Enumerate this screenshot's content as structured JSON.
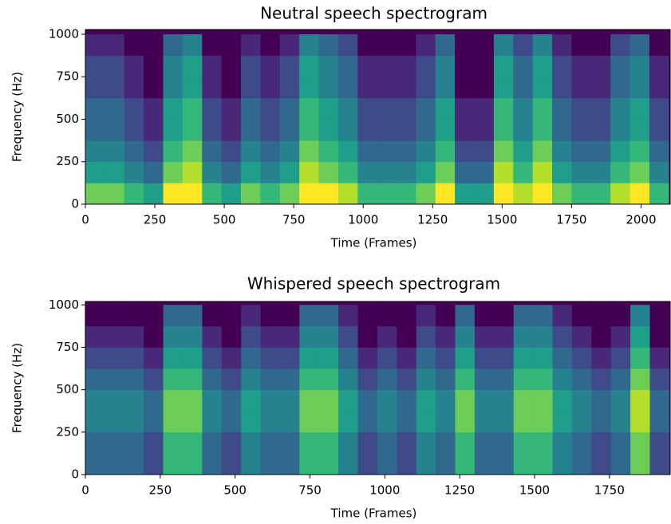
{
  "chart_data": [
    {
      "type": "heatmap",
      "title": "Neutral speech spectrogram",
      "xlabel": "Time (Frames)",
      "ylabel": "Frequency (Hz)",
      "xlim": [
        0,
        2105
      ],
      "ylim": [
        0,
        1028
      ],
      "xticks": [
        0,
        250,
        500,
        750,
        1000,
        1250,
        1500,
        1750,
        2000
      ],
      "yticks": [
        0,
        250,
        500,
        750,
        1000
      ],
      "colormap": "viridis",
      "zlim": [
        0,
        9
      ],
      "x_edges": [
        0,
        70,
        140,
        210,
        280,
        350,
        420,
        490,
        560,
        630,
        700,
        770,
        840,
        910,
        980,
        1050,
        1120,
        1190,
        1260,
        1330,
        1400,
        1470,
        1540,
        1610,
        1680,
        1750,
        1820,
        1890,
        1960,
        2030,
        2100
      ],
      "y_edges": [
        0,
        125,
        250,
        375,
        500,
        625,
        750,
        875,
        1000
      ],
      "z": [
        [
          7,
          7,
          6,
          5,
          9,
          9,
          6,
          5,
          7,
          6,
          7,
          9,
          9,
          8,
          6,
          6,
          6,
          7,
          9,
          5,
          5,
          9,
          8,
          9,
          7,
          6,
          6,
          8,
          9,
          6
        ],
        [
          5,
          5,
          4,
          3,
          7,
          8,
          4,
          3,
          5,
          4,
          5,
          8,
          7,
          6,
          4,
          4,
          4,
          5,
          7,
          3,
          3,
          8,
          6,
          8,
          5,
          4,
          4,
          6,
          7,
          4
        ],
        [
          4,
          4,
          3,
          2,
          6,
          7,
          3,
          2,
          4,
          3,
          4,
          7,
          6,
          5,
          3,
          3,
          3,
          4,
          6,
          2,
          2,
          7,
          5,
          7,
          4,
          3,
          3,
          5,
          6,
          3
        ],
        [
          3,
          3,
          2,
          1,
          5,
          6,
          2,
          1,
          3,
          2,
          3,
          6,
          5,
          4,
          2,
          2,
          2,
          3,
          5,
          1,
          1,
          6,
          4,
          6,
          3,
          2,
          2,
          4,
          5,
          2
        ],
        [
          3,
          3,
          2,
          1,
          5,
          6,
          2,
          1,
          3,
          2,
          3,
          6,
          5,
          4,
          2,
          2,
          2,
          3,
          5,
          1,
          1,
          6,
          4,
          6,
          3,
          2,
          2,
          4,
          5,
          2
        ],
        [
          2,
          2,
          1,
          0,
          4,
          5,
          1,
          0,
          2,
          1,
          2,
          5,
          4,
          3,
          1,
          1,
          1,
          2,
          4,
          0,
          0,
          5,
          3,
          5,
          2,
          1,
          1,
          3,
          4,
          1
        ],
        [
          2,
          2,
          1,
          0,
          4,
          5,
          1,
          0,
          2,
          1,
          2,
          5,
          4,
          3,
          1,
          1,
          1,
          2,
          4,
          0,
          0,
          5,
          3,
          5,
          2,
          1,
          1,
          3,
          4,
          1
        ],
        [
          1,
          1,
          0,
          0,
          3,
          4,
          0,
          0,
          1,
          0,
          1,
          4,
          3,
          2,
          0,
          0,
          0,
          1,
          3,
          0,
          0,
          4,
          2,
          4,
          1,
          0,
          0,
          2,
          3,
          0
        ]
      ]
    },
    {
      "type": "heatmap",
      "title": "Whispered speech spectrogram",
      "xlabel": "Time (Frames)",
      "ylabel": "Frequency (Hz)",
      "xlim": [
        0,
        1953
      ],
      "ylim": [
        0,
        1020
      ],
      "xticks": [
        0,
        250,
        500,
        750,
        1000,
        1250,
        1500,
        1750
      ],
      "yticks": [
        0,
        250,
        500,
        750,
        1000
      ],
      "colormap": "viridis",
      "zlim": [
        0,
        9
      ],
      "x_edges": [
        0,
        65,
        130,
        195,
        260,
        325,
        390,
        455,
        520,
        585,
        650,
        715,
        780,
        845,
        910,
        975,
        1040,
        1105,
        1170,
        1235,
        1300,
        1365,
        1430,
        1495,
        1560,
        1625,
        1690,
        1755,
        1820,
        1885,
        1950
      ],
      "y_edges": [
        0,
        125,
        250,
        375,
        500,
        625,
        750,
        875,
        1000
      ],
      "z": [
        [
          3,
          3,
          3,
          2,
          6,
          6,
          3,
          2,
          4,
          3,
          3,
          6,
          6,
          4,
          2,
          3,
          2,
          4,
          3,
          6,
          3,
          3,
          6,
          6,
          4,
          3,
          2,
          3,
          7,
          2
        ],
        [
          3,
          3,
          3,
          2,
          6,
          6,
          3,
          2,
          4,
          3,
          3,
          6,
          6,
          4,
          2,
          3,
          2,
          4,
          3,
          6,
          3,
          3,
          6,
          6,
          4,
          3,
          2,
          3,
          7,
          2
        ],
        [
          4,
          4,
          4,
          3,
          7,
          7,
          4,
          3,
          5,
          4,
          4,
          7,
          7,
          5,
          3,
          4,
          3,
          5,
          4,
          7,
          4,
          4,
          7,
          7,
          5,
          4,
          3,
          4,
          8,
          3
        ],
        [
          4,
          4,
          4,
          3,
          7,
          7,
          4,
          3,
          5,
          4,
          4,
          7,
          7,
          5,
          3,
          4,
          3,
          5,
          4,
          7,
          4,
          4,
          7,
          7,
          5,
          4,
          3,
          4,
          8,
          3
        ],
        [
          3,
          3,
          3,
          2,
          6,
          6,
          3,
          2,
          4,
          3,
          3,
          6,
          6,
          4,
          2,
          3,
          2,
          4,
          3,
          6,
          3,
          3,
          6,
          6,
          4,
          3,
          2,
          3,
          7,
          2
        ],
        [
          2,
          2,
          2,
          1,
          5,
          5,
          2,
          1,
          3,
          2,
          2,
          5,
          5,
          3,
          1,
          2,
          1,
          3,
          2,
          5,
          2,
          2,
          5,
          5,
          3,
          2,
          1,
          2,
          6,
          1
        ],
        [
          1,
          1,
          1,
          0,
          4,
          4,
          1,
          0,
          2,
          1,
          1,
          4,
          4,
          2,
          0,
          1,
          0,
          2,
          1,
          4,
          1,
          1,
          4,
          4,
          2,
          1,
          0,
          1,
          5,
          0
        ],
        [
          0,
          0,
          0,
          0,
          3,
          3,
          0,
          0,
          1,
          0,
          0,
          3,
          3,
          1,
          0,
          0,
          0,
          1,
          0,
          3,
          0,
          0,
          3,
          3,
          1,
          0,
          0,
          0,
          4,
          0
        ]
      ]
    }
  ]
}
